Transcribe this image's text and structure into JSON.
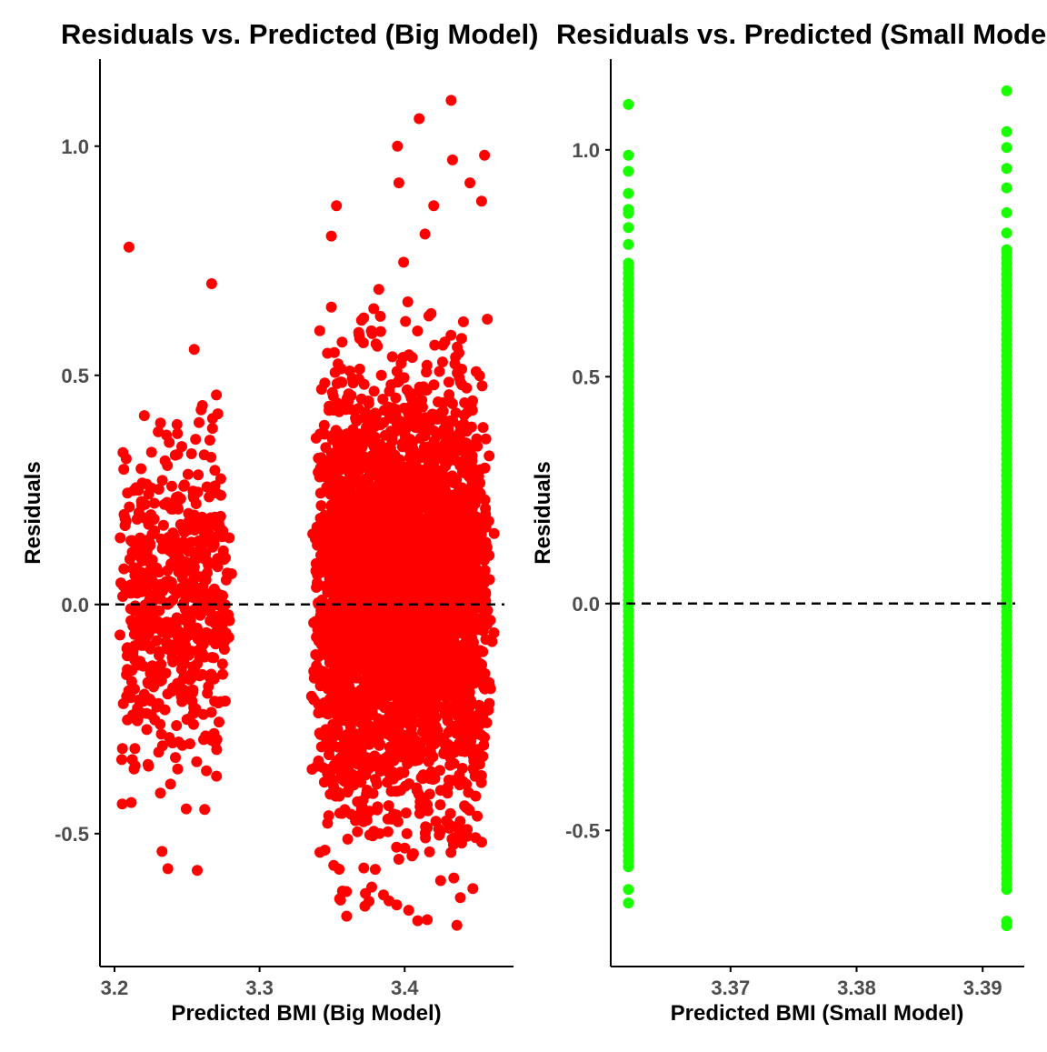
{
  "colors": {
    "big_points": "#ff0000",
    "small_points": "#1aff00",
    "axis": "#000000",
    "tick_text": "#4d4d4d",
    "reference_line": "#000000",
    "background": "#ffffff"
  },
  "chart_data": [
    {
      "type": "scatter",
      "title": "Residuals vs. Predicted (Big Model)",
      "xlabel": "Predicted BMI (Big Model)",
      "ylabel": "Residuals",
      "xlim": [
        3.19,
        3.475
      ],
      "ylim": [
        -0.79,
        1.19
      ],
      "x_ticks": [
        3.2,
        3.3,
        3.4
      ],
      "x_tick_labels": [
        "3.2",
        "3.3",
        "3.4"
      ],
      "y_ticks": [
        -0.5,
        0.0,
        0.5,
        1.0
      ],
      "y_tick_labels": [
        "-0.5",
        "0.0",
        "0.5",
        "1.0"
      ],
      "reference_line": {
        "y": 0,
        "style": "dashed"
      },
      "grid": false,
      "legend": "none",
      "point_color": "#ff0000",
      "clusters": [
        {
          "x_range": [
            3.2,
            3.282
          ],
          "y_range": [
            -0.58,
            0.78
          ],
          "approx_n": 600
        },
        {
          "x_range": [
            3.335,
            3.462
          ],
          "y_range": [
            -0.7,
            1.1
          ],
          "approx_n": 3800
        }
      ],
      "highlighted_points": [
        {
          "x": 3.21,
          "y": 0.78
        },
        {
          "x": 3.267,
          "y": 0.7
        },
        {
          "x": 3.257,
          "y": -0.58
        },
        {
          "x": 3.432,
          "y": 1.1
        },
        {
          "x": 3.41,
          "y": 1.06
        },
        {
          "x": 3.395,
          "y": 1.0
        },
        {
          "x": 3.455,
          "y": 0.98
        },
        {
          "x": 3.433,
          "y": 0.97
        },
        {
          "x": 3.396,
          "y": 0.92
        },
        {
          "x": 3.445,
          "y": 0.92
        },
        {
          "x": 3.42,
          "y": 0.87
        },
        {
          "x": 3.453,
          "y": 0.88
        },
        {
          "x": 3.353,
          "y": 0.87
        },
        {
          "x": 3.436,
          "y": -0.7
        },
        {
          "x": 3.409,
          "y": -0.69
        },
        {
          "x": 3.36,
          "y": -0.68
        },
        {
          "x": 3.447,
          "y": -0.62
        }
      ]
    },
    {
      "type": "scatter",
      "title": "Residuals vs. Predicted (Small Model)",
      "xlabel": "Predicted BMI (Small Model)",
      "ylabel": "Residuals",
      "xlim": [
        3.3605,
        3.3933
      ],
      "ylim": [
        -0.8,
        1.2
      ],
      "x_ticks": [
        3.37,
        3.38,
        3.39
      ],
      "x_tick_labels": [
        "3.37",
        "3.38",
        "3.39"
      ],
      "y_ticks": [
        -0.5,
        0.0,
        0.5,
        1.0
      ],
      "y_tick_labels": [
        "-0.5",
        "0.0",
        "0.5",
        "1.0"
      ],
      "reference_line": {
        "y": 0,
        "style": "dashed"
      },
      "grid": false,
      "legend": "none",
      "point_color": "#1aff00",
      "columns": [
        {
          "x": 3.3619,
          "y_range": [
            -0.66,
            1.1
          ],
          "extremes": [
            1.1,
            0.86,
            -0.63,
            -0.66
          ]
        },
        {
          "x": 3.3919,
          "y_range": [
            -0.71,
            1.13
          ],
          "extremes": [
            1.13,
            1.04,
            -0.7,
            -0.71
          ]
        }
      ]
    }
  ]
}
